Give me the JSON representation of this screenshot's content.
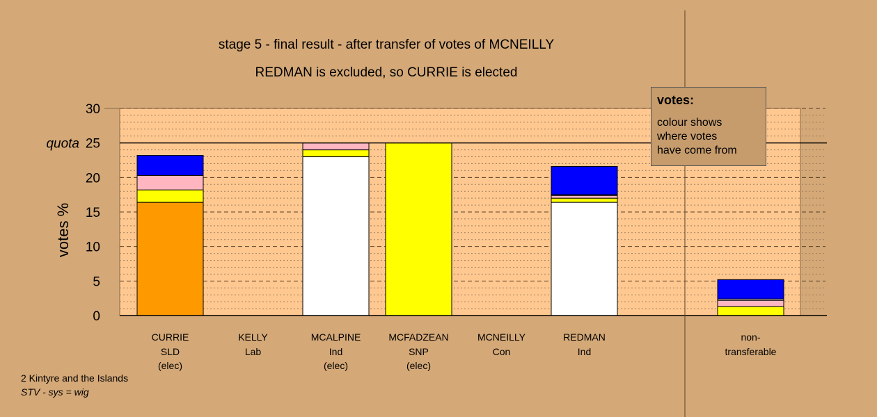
{
  "titles": {
    "line1": "stage 5 - final result - after transfer of votes of MCNEILLY",
    "line2": "REDMAN is excluded, so CURRIE is elected"
  },
  "legend": {
    "title": "votes:",
    "text": "colour shows\nwhere votes\nhave come from"
  },
  "footer": {
    "line1": "2 Kintyre and the Islands",
    "line2": "STV - sys = wig"
  },
  "chart_data": {
    "type": "bar",
    "stacked": true,
    "ylabel": "votes %",
    "ylim": [
      0,
      30
    ],
    "yticks": [
      0,
      5,
      10,
      15,
      20,
      25,
      30
    ],
    "quota": {
      "label": "quota",
      "value": 25
    },
    "grid": true,
    "categories": [
      {
        "name": "CURRIE",
        "party": "SLD",
        "note": "(elec)"
      },
      {
        "name": "KELLY",
        "party": "Lab",
        "note": ""
      },
      {
        "name": "MCALPINE",
        "party": "Ind",
        "note": "(elec)"
      },
      {
        "name": "MCFADZEAN",
        "party": "SNP",
        "note": "(elec)"
      },
      {
        "name": "MCNEILLY",
        "party": "Con",
        "note": ""
      },
      {
        "name": "REDMAN",
        "party": "Ind",
        "note": ""
      }
    ],
    "non_transferable": {
      "label1": "non-",
      "label2": "transferable"
    },
    "series": [
      {
        "color": "#ff9900",
        "values": [
          16.4,
          0,
          0,
          0,
          0,
          0
        ],
        "nt": 0
      },
      {
        "color": "#ffffff",
        "values": [
          0,
          0,
          23.0,
          0,
          0,
          16.4
        ],
        "nt": 0
      },
      {
        "color": "#ffff00",
        "values": [
          1.8,
          0,
          1.0,
          25.0,
          0,
          0.6
        ],
        "nt": 1.3
      },
      {
        "color": "#ffb6c1",
        "values": [
          2.1,
          0,
          1.0,
          0,
          0,
          0.4
        ],
        "nt": 0.9
      },
      {
        "color": "#ffffff",
        "values": [
          0,
          0,
          0,
          0,
          0,
          0.1
        ],
        "nt": 0.2
      },
      {
        "color": "#0000ff",
        "values": [
          2.9,
          0,
          0,
          0,
          0,
          4.1
        ],
        "nt": 2.8
      }
    ]
  }
}
